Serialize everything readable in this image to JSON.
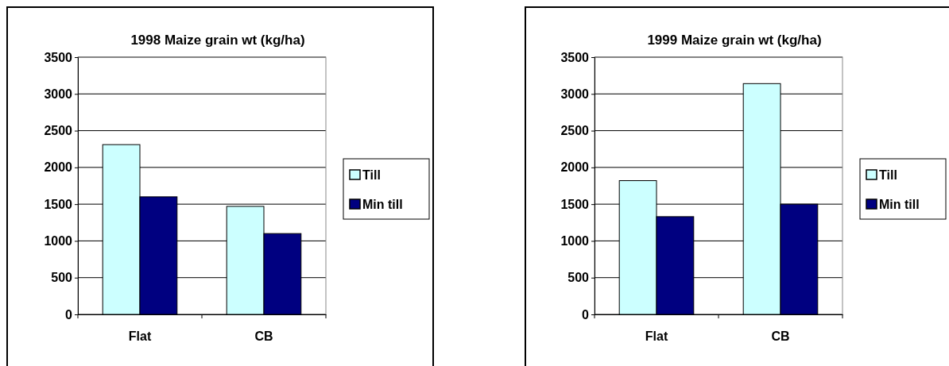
{
  "chart_data": [
    {
      "type": "bar",
      "title": "1998 Maize grain wt (kg/ha)",
      "categories": [
        "Flat",
        "CB"
      ],
      "series": [
        {
          "name": "Till",
          "color": "#ccffff",
          "values": [
            2310,
            1470
          ]
        },
        {
          "name": "Min till",
          "color": "#000080",
          "values": [
            1600,
            1100
          ]
        }
      ],
      "ylim": [
        0,
        3500
      ],
      "yticks": [
        0,
        500,
        1000,
        1500,
        2000,
        2500,
        3000,
        3500
      ],
      "grid": "y",
      "legend": "right"
    },
    {
      "type": "bar",
      "title": "1999 Maize grain wt (kg/ha)",
      "categories": [
        "Flat",
        "CB"
      ],
      "series": [
        {
          "name": "Till",
          "color": "#ccffff",
          "values": [
            1820,
            3140
          ]
        },
        {
          "name": "Min till",
          "color": "#000080",
          "values": [
            1330,
            1500
          ]
        }
      ],
      "ylim": [
        0,
        3500
      ],
      "yticks": [
        0,
        500,
        1000,
        1500,
        2000,
        2500,
        3000,
        3500
      ],
      "grid": "y",
      "legend": "right"
    }
  ]
}
